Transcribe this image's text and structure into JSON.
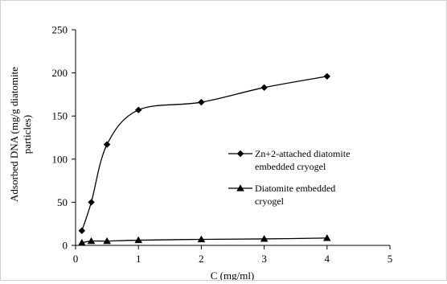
{
  "chart_data": {
    "type": "line",
    "title": "",
    "xlabel": "C (mg/ml)",
    "ylabel_lines": [
      "Adsorbed DNA (mg/g diatomite",
      "particles)"
    ],
    "xlim": [
      0,
      5
    ],
    "ylim": [
      0,
      250
    ],
    "x_ticks": [
      0,
      1,
      2,
      3,
      4,
      5
    ],
    "y_ticks": [
      0,
      50,
      100,
      150,
      200,
      250
    ],
    "grid": false,
    "legend_position": "center-right",
    "series": [
      {
        "name_lines": [
          "Zn+2-attached diatomite",
          "embedded cryogel"
        ],
        "marker": "diamond",
        "smooth": true,
        "color": "#000000",
        "points": [
          {
            "x": 0.1,
            "y": 17
          },
          {
            "x": 0.25,
            "y": 50
          },
          {
            "x": 0.5,
            "y": 117
          },
          {
            "x": 1,
            "y": 157
          },
          {
            "x": 2,
            "y": 166
          },
          {
            "x": 3,
            "y": 183
          },
          {
            "x": 4,
            "y": 196
          }
        ]
      },
      {
        "name_lines": [
          "Diatomite embedded",
          "cryogel"
        ],
        "marker": "triangle",
        "smooth": true,
        "color": "#000000",
        "points": [
          {
            "x": 0.1,
            "y": 3
          },
          {
            "x": 0.25,
            "y": 5
          },
          {
            "x": 0.5,
            "y": 5
          },
          {
            "x": 1,
            "y": 6
          },
          {
            "x": 2,
            "y": 7
          },
          {
            "x": 3,
            "y": 7.5
          },
          {
            "x": 4,
            "y": 8.5
          }
        ]
      }
    ]
  }
}
